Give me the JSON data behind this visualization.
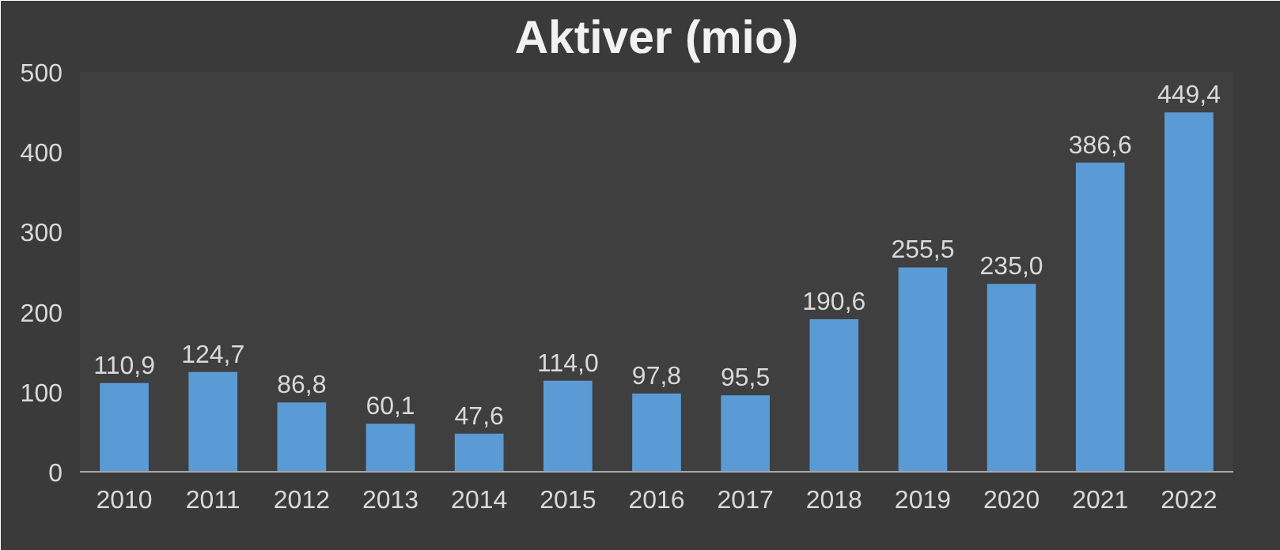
{
  "chart_data": {
    "type": "bar",
    "title": "Aktiver (mio)",
    "categories": [
      "2010",
      "2011",
      "2012",
      "2013",
      "2014",
      "2015",
      "2016",
      "2017",
      "2018",
      "2019",
      "2020",
      "2021",
      "2022"
    ],
    "values": [
      110.9,
      124.7,
      86.8,
      60.1,
      47.6,
      114.0,
      97.8,
      95.5,
      190.6,
      255.5,
      235.0,
      386.6,
      449.4
    ],
    "value_labels": [
      "110,9",
      "124,7",
      "86,8",
      "60,1",
      "47,6",
      "114,0",
      "97,8",
      "95,5",
      "190,6",
      "255,5",
      "235,0",
      "386,6",
      "449,4"
    ],
    "color": "#5b9bd5",
    "ylim": [
      0,
      500
    ],
    "yticks": [
      0,
      100,
      200,
      300,
      400,
      500
    ],
    "grid": false
  }
}
